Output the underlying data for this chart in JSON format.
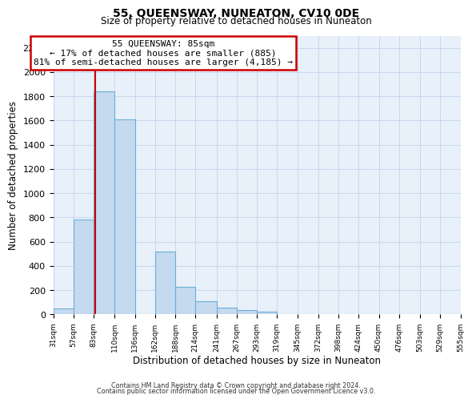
{
  "title": "55, QUEENSWAY, NUNEATON, CV10 0DE",
  "subtitle": "Size of property relative to detached houses in Nuneaton",
  "xlabel": "Distribution of detached houses by size in Nuneaton",
  "ylabel": "Number of detached properties",
  "bar_edges": [
    31,
    57,
    83,
    110,
    136,
    162,
    188,
    214,
    241,
    267,
    293,
    319,
    345,
    372,
    398,
    424,
    450,
    476,
    503,
    529,
    555
  ],
  "bar_heights": [
    50,
    780,
    1840,
    1610,
    0,
    520,
    230,
    105,
    55,
    35,
    20,
    0,
    0,
    0,
    0,
    0,
    0,
    0,
    0,
    0
  ],
  "bar_color": "#c5d9ef",
  "bar_edge_color": "#6baed6",
  "property_line_x": 85,
  "property_line_color": "#cc0000",
  "ylim": [
    0,
    2300
  ],
  "annotation_title": "55 QUEENSWAY: 85sqm",
  "annotation_line1": "← 17% of detached houses are smaller (885)",
  "annotation_line2": "81% of semi-detached houses are larger (4,185) →",
  "annotation_box_edgecolor": "#cc0000",
  "footer1": "Contains HM Land Registry data © Crown copyright and database right 2024.",
  "footer2": "Contains public sector information licensed under the Open Government Licence v3.0.",
  "tick_labels": [
    "31sqm",
    "57sqm",
    "83sqm",
    "110sqm",
    "136sqm",
    "162sqm",
    "188sqm",
    "214sqm",
    "241sqm",
    "267sqm",
    "293sqm",
    "319sqm",
    "345sqm",
    "372sqm",
    "398sqm",
    "424sqm",
    "450sqm",
    "476sqm",
    "503sqm",
    "529sqm",
    "555sqm"
  ],
  "bg_color": "#e8f0fa",
  "grid_color": "#c8d8ed",
  "yticks": [
    0,
    200,
    400,
    600,
    800,
    1000,
    1200,
    1400,
    1600,
    1800,
    2000,
    2200
  ]
}
